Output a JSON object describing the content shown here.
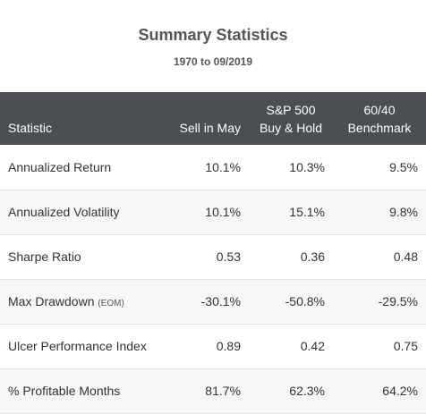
{
  "header": {
    "title": "Summary Statistics",
    "subtitle": "1970 to 09/2019"
  },
  "table": {
    "columns": [
      {
        "line1": "",
        "line2": "Statistic"
      },
      {
        "line1": "",
        "line2": "Sell in May"
      },
      {
        "line1": "S&P 500",
        "line2": "Buy & Hold"
      },
      {
        "line1": "60/40",
        "line2": "Benchmark"
      }
    ],
    "rows": [
      {
        "label": "Annualized Return",
        "note": "",
        "values": [
          "10.1%",
          "10.3%",
          "9.5%"
        ]
      },
      {
        "label": "Annualized Volatility",
        "note": "",
        "values": [
          "10.1%",
          "15.1%",
          "9.8%"
        ]
      },
      {
        "label": "Sharpe Ratio",
        "note": "",
        "values": [
          "0.53",
          "0.36",
          "0.48"
        ]
      },
      {
        "label": "Max Drawdown",
        "note": "(EOM)",
        "values": [
          "-30.1%",
          "-50.8%",
          "-29.5%"
        ]
      },
      {
        "label": "Ulcer Performance Index",
        "note": "",
        "values": [
          "0.89",
          "0.42",
          "0.75"
        ]
      },
      {
        "label": "% Profitable Months",
        "note": "",
        "values": [
          "81.7%",
          "62.3%",
          "64.2%"
        ]
      }
    ]
  },
  "colors": {
    "header_bg": "#4a4f52",
    "header_text": "#ffffff",
    "row_alt_bg": "#f7f7f7",
    "title_text": "#555555"
  }
}
